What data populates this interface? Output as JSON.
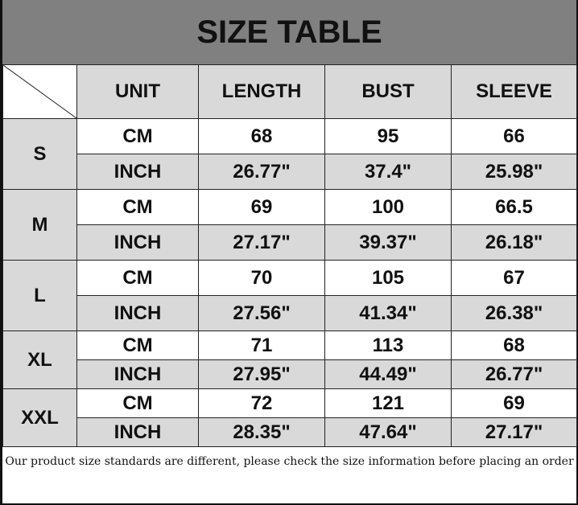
{
  "title": "SIZE TABLE",
  "headers": [
    "UNIT",
    "LENGTH",
    "BUST",
    "SLEEVE"
  ],
  "rows": [
    {
      "size": "S",
      "cm": {
        "unit": "CM",
        "length": "68",
        "bust": "95",
        "sleeve": "66"
      },
      "inch": {
        "unit": "INCH",
        "length": "26.77\"",
        "bust": "37.4\"",
        "sleeve": "25.98\""
      }
    },
    {
      "size": "M",
      "cm": {
        "unit": "CM",
        "length": "69",
        "bust": "100",
        "sleeve": "66.5"
      },
      "inch": {
        "unit": "INCH",
        "length": "27.17\"",
        "bust": "39.37\"",
        "sleeve": "26.18\""
      }
    },
    {
      "size": "L",
      "cm": {
        "unit": "CM",
        "length": "70",
        "bust": "105",
        "sleeve": "67"
      },
      "inch": {
        "unit": "INCH",
        "length": "27.56\"",
        "bust": "41.34\"",
        "sleeve": "26.38\""
      }
    },
    {
      "size": "XL",
      "cm": {
        "unit": "CM",
        "length": "71",
        "bust": "113",
        "sleeve": "68"
      },
      "inch": {
        "unit": "INCH",
        "length": "27.95\"",
        "bust": "44.49\"",
        "sleeve": "26.77\""
      }
    },
    {
      "size": "XXL",
      "cm": {
        "unit": "CM",
        "length": "72",
        "bust": "121",
        "sleeve": "69"
      },
      "inch": {
        "unit": "INCH",
        "length": "28.35\"",
        "bust": "47.64\"",
        "sleeve": "27.17\""
      }
    }
  ],
  "note": "Our product size standards are different, please check the size information before placing an order",
  "colors": {
    "title_bg": "#808080",
    "cell_gray": "#d9d9d9",
    "cell_white": "#ffffff"
  }
}
